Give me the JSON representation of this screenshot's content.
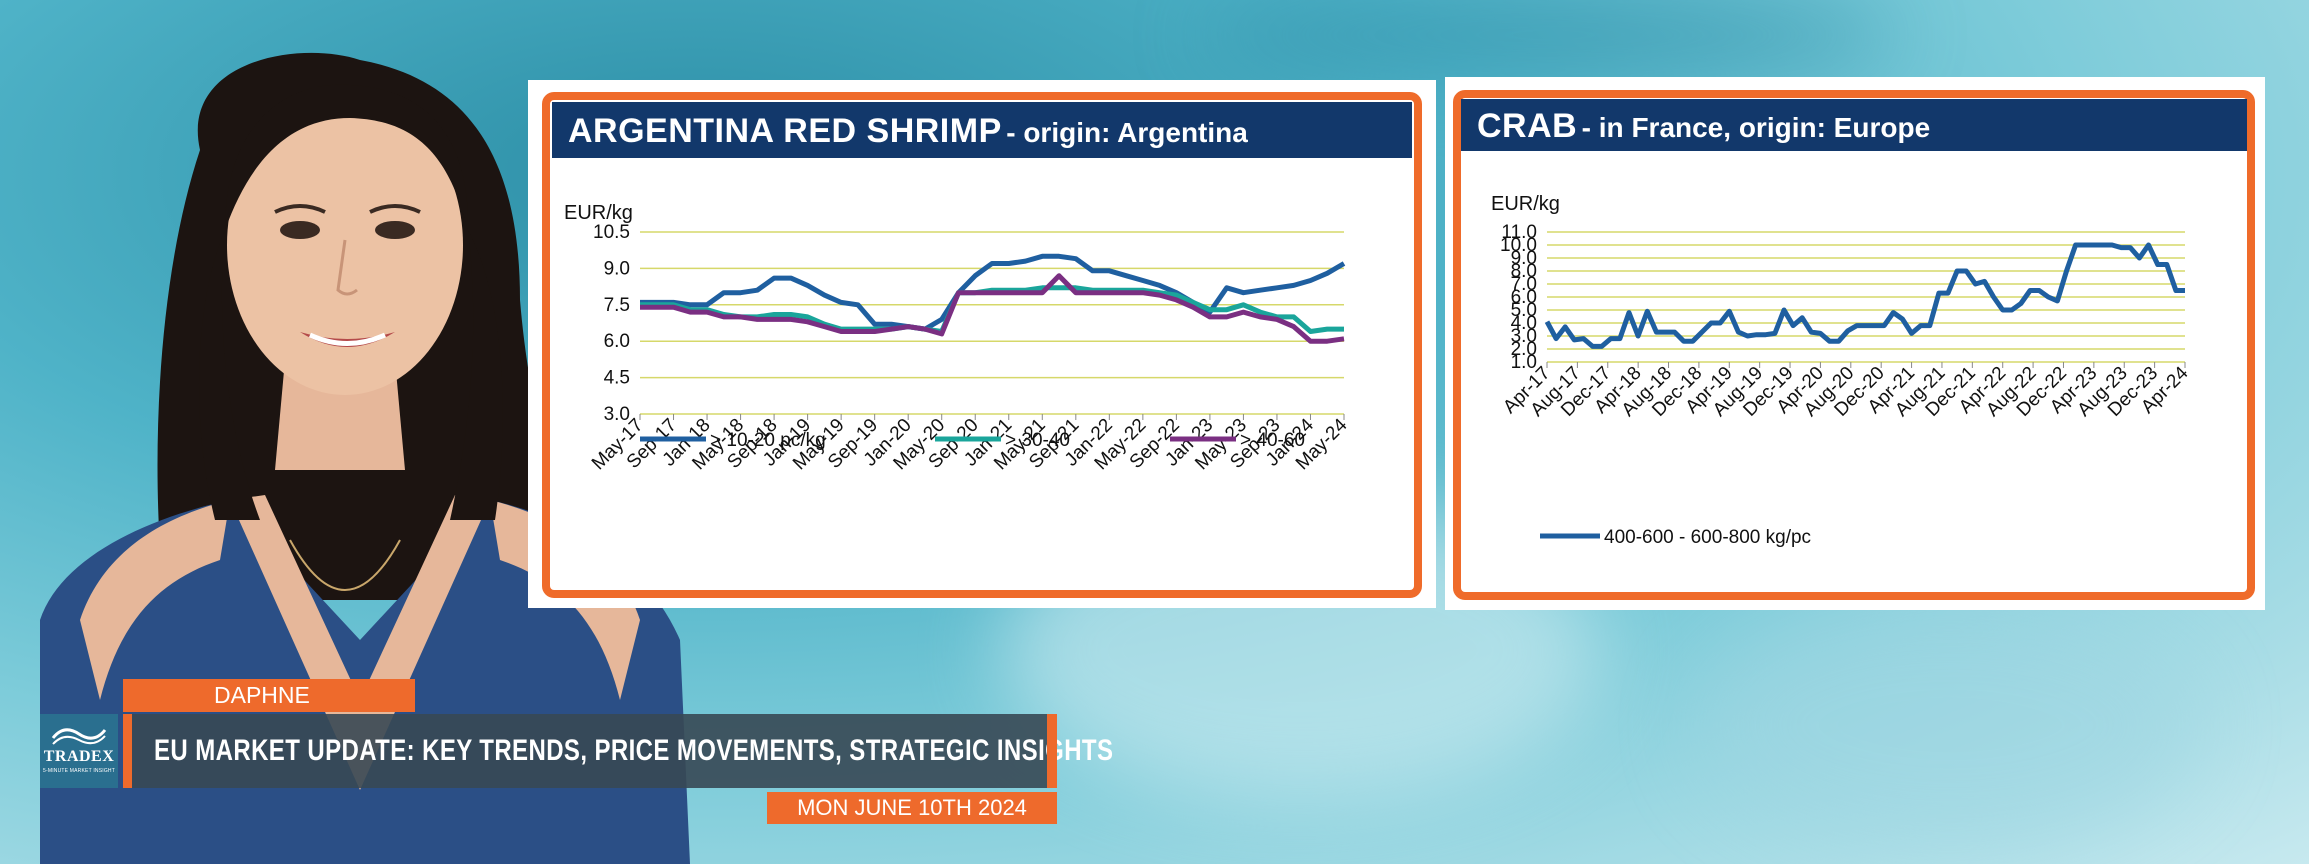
{
  "colors": {
    "orange": "#ef6b2a",
    "navy": "#12386b",
    "series_blue": "#1f5fa0",
    "series_teal": "#1aa59b",
    "series_purple": "#7a2f82",
    "gridline": "#d6d86a"
  },
  "lower_third": {
    "logo_text": "TRADEX",
    "logo_tagline": "5-MINUTE MARKET INSIGHT",
    "presenter_name": "DAPHNE",
    "headline": "EU MARKET UPDATE: KEY TRENDS, PRICE MOVEMENTS, STRATEGIC INSIGHTS",
    "date": "MON JUNE 10TH 2024"
  },
  "chart_data": [
    {
      "type": "line",
      "title": "ARGENTINA RED SHRIMP",
      "subtitle": "- origin: Argentina",
      "ylabel": "EUR/kg",
      "ylim": [
        3.0,
        10.5
      ],
      "yticks": [
        "10.5",
        "9.0",
        "7.5",
        "6.0",
        "4.5",
        "3.0"
      ],
      "x_tick_labels": [
        "May-17",
        "Sep-17",
        "Jan-18",
        "May-18",
        "Sep-18",
        "Jan-19",
        "May-19",
        "Sep-19",
        "Jan-20",
        "May-20",
        "Sep-20",
        "Jan-21",
        "May-21",
        "Sep-21",
        "Jan-22",
        "May-22",
        "Sep-22",
        "Jan-23",
        "May-23",
        "Sep-23",
        "Jan-24",
        "May-24"
      ],
      "grid": true,
      "legend_position": "bottom",
      "series": [
        {
          "name": "> 10-20 pc/kg",
          "color": "#1f5fa0",
          "values": [
            7.6,
            7.6,
            7.6,
            7.5,
            7.5,
            8.0,
            8.0,
            8.1,
            8.6,
            8.6,
            8.3,
            7.9,
            7.6,
            7.5,
            6.7,
            6.7,
            6.6,
            6.5,
            6.9,
            8.0,
            8.7,
            9.2,
            9.2,
            9.3,
            9.5,
            9.5,
            9.4,
            8.9,
            8.9,
            8.7,
            8.5,
            8.3,
            8.0,
            7.6,
            7.2,
            8.2,
            8.0,
            8.1,
            8.2,
            8.3,
            8.5,
            8.8,
            9.2
          ]
        },
        {
          "name": "> 30-40",
          "color": "#1aa59b",
          "values": [
            7.5,
            7.5,
            7.5,
            7.3,
            7.3,
            7.1,
            7.0,
            7.0,
            7.1,
            7.1,
            7.0,
            6.7,
            6.5,
            6.5,
            6.5,
            6.5,
            6.6,
            6.5,
            6.4,
            8.0,
            8.0,
            8.1,
            8.1,
            8.1,
            8.2,
            8.2,
            8.2,
            8.1,
            8.1,
            8.1,
            8.1,
            8.0,
            7.9,
            7.6,
            7.3,
            7.3,
            7.5,
            7.2,
            7.0,
            7.0,
            6.4,
            6.5,
            6.5
          ]
        },
        {
          "name": "> 40-60",
          "color": "#7a2f82",
          "values": [
            7.4,
            7.4,
            7.4,
            7.2,
            7.2,
            7.0,
            7.0,
            6.9,
            6.9,
            6.9,
            6.8,
            6.6,
            6.4,
            6.4,
            6.4,
            6.5,
            6.6,
            6.5,
            6.3,
            8.0,
            8.0,
            8.0,
            8.0,
            8.0,
            8.0,
            8.7,
            8.0,
            8.0,
            8.0,
            8.0,
            8.0,
            7.9,
            7.7,
            7.4,
            7.0,
            7.0,
            7.2,
            7.0,
            6.9,
            6.6,
            6.0,
            6.0,
            6.1
          ]
        }
      ]
    },
    {
      "type": "line",
      "title": "CRAB",
      "subtitle": "- in France, origin: Europe",
      "ylabel": "EUR/kg",
      "ylim": [
        1.0,
        11.0
      ],
      "yticks": [
        "11.0",
        "10.0",
        "9.0",
        "8.0",
        "7.0",
        "6.0",
        "5.0",
        "4.0",
        "3.0",
        "2.0",
        "1.0"
      ],
      "x_tick_labels": [
        "Apr-17",
        "Aug-17",
        "Dec-17",
        "Apr-18",
        "Aug-18",
        "Dec-18",
        "Apr-19",
        "Aug-19",
        "Dec-19",
        "Apr-20",
        "Aug-20",
        "Dec-20",
        "Apr-21",
        "Aug-21",
        "Dec-21",
        "Apr-22",
        "Aug-22",
        "Dec-22",
        "Apr-23",
        "Aug-23",
        "Dec-23",
        "Apr-24"
      ],
      "grid": true,
      "legend_position": "bottom-left",
      "series": [
        {
          "name": "400-600 - 600-800 kg/pc",
          "color": "#1f5fa0",
          "values": [
            4.1,
            2.8,
            3.7,
            2.7,
            2.8,
            2.2,
            2.2,
            2.8,
            2.8,
            4.8,
            3.0,
            4.9,
            3.3,
            3.3,
            3.3,
            2.6,
            2.6,
            3.3,
            4.0,
            4.0,
            4.9,
            3.3,
            3.0,
            3.1,
            3.1,
            3.2,
            5.0,
            3.8,
            4.4,
            3.3,
            3.2,
            2.6,
            2.6,
            3.4,
            3.8,
            3.8,
            3.8,
            3.8,
            4.8,
            4.3,
            3.2,
            3.8,
            3.8,
            6.3,
            6.3,
            8.0,
            8.0,
            7.0,
            7.2,
            6.0,
            5.0,
            5.0,
            5.5,
            6.5,
            6.5,
            6.0,
            5.7,
            8.0,
            10.0,
            10.0,
            10.0,
            10.0,
            10.0,
            9.8,
            9.8,
            9.0,
            10.0,
            8.5,
            8.5,
            6.5,
            6.5
          ]
        }
      ]
    }
  ]
}
